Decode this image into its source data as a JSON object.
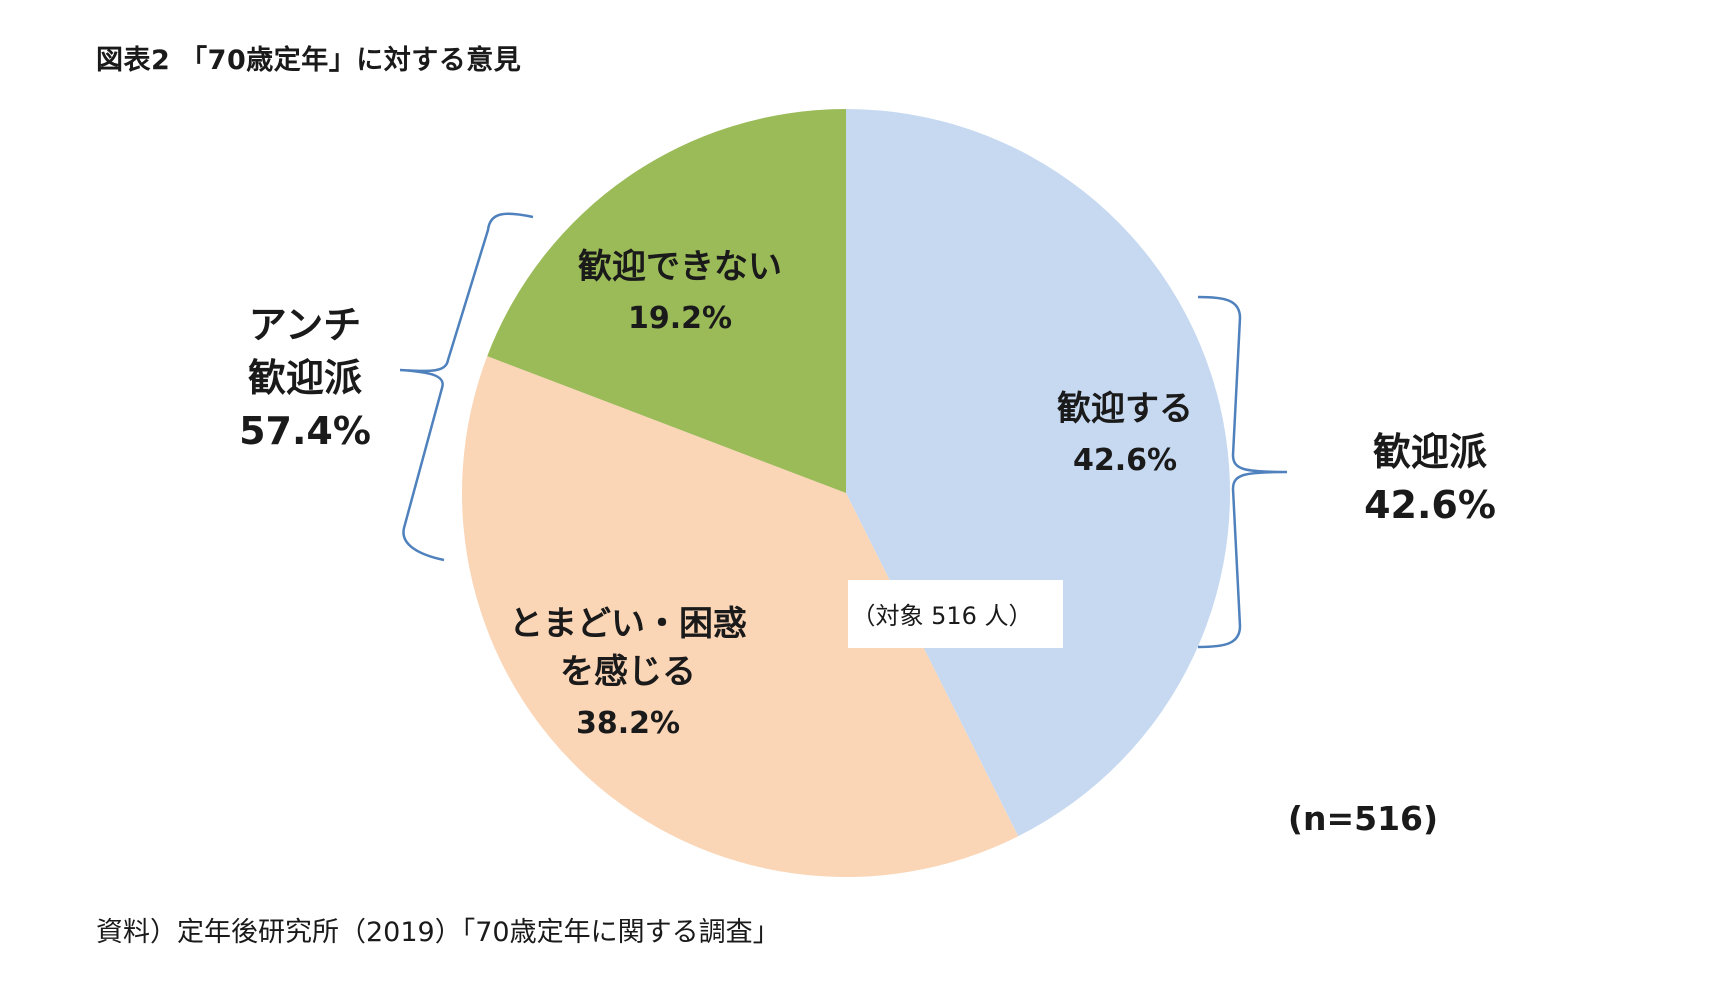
{
  "figure_title": "図表2 「70歳定年」に対する意見",
  "source_note": "資料）定年後研究所（2019）「70歳定年に関する調査」",
  "chart_data": {
    "type": "pie",
    "start_angle_deg": 0,
    "direction": "clockwise",
    "slices": [
      {
        "label_lines": [
          "歓迎する"
        ],
        "value": 42.6,
        "value_label": "42.6%",
        "color": "#c6d9f1"
      },
      {
        "label_lines": [
          "とまどい・困惑",
          "を感じる"
        ],
        "value": 38.2,
        "value_label": "38.2%",
        "color": "#fad5b6"
      },
      {
        "label_lines": [
          "歓迎できない"
        ],
        "value": 19.2,
        "value_label": "19.2%",
        "color": "#9bbb59"
      }
    ],
    "center_note": "（対象 516 人）",
    "groups": [
      {
        "label_lines": [
          "歓迎派",
          "42.6%"
        ],
        "side": "right"
      },
      {
        "label_lines": [
          "アンチ",
          "歓迎派",
          "57.4%"
        ],
        "side": "left"
      }
    ],
    "n_label": "(n=516)",
    "bracket_color": "#4f81bd"
  }
}
